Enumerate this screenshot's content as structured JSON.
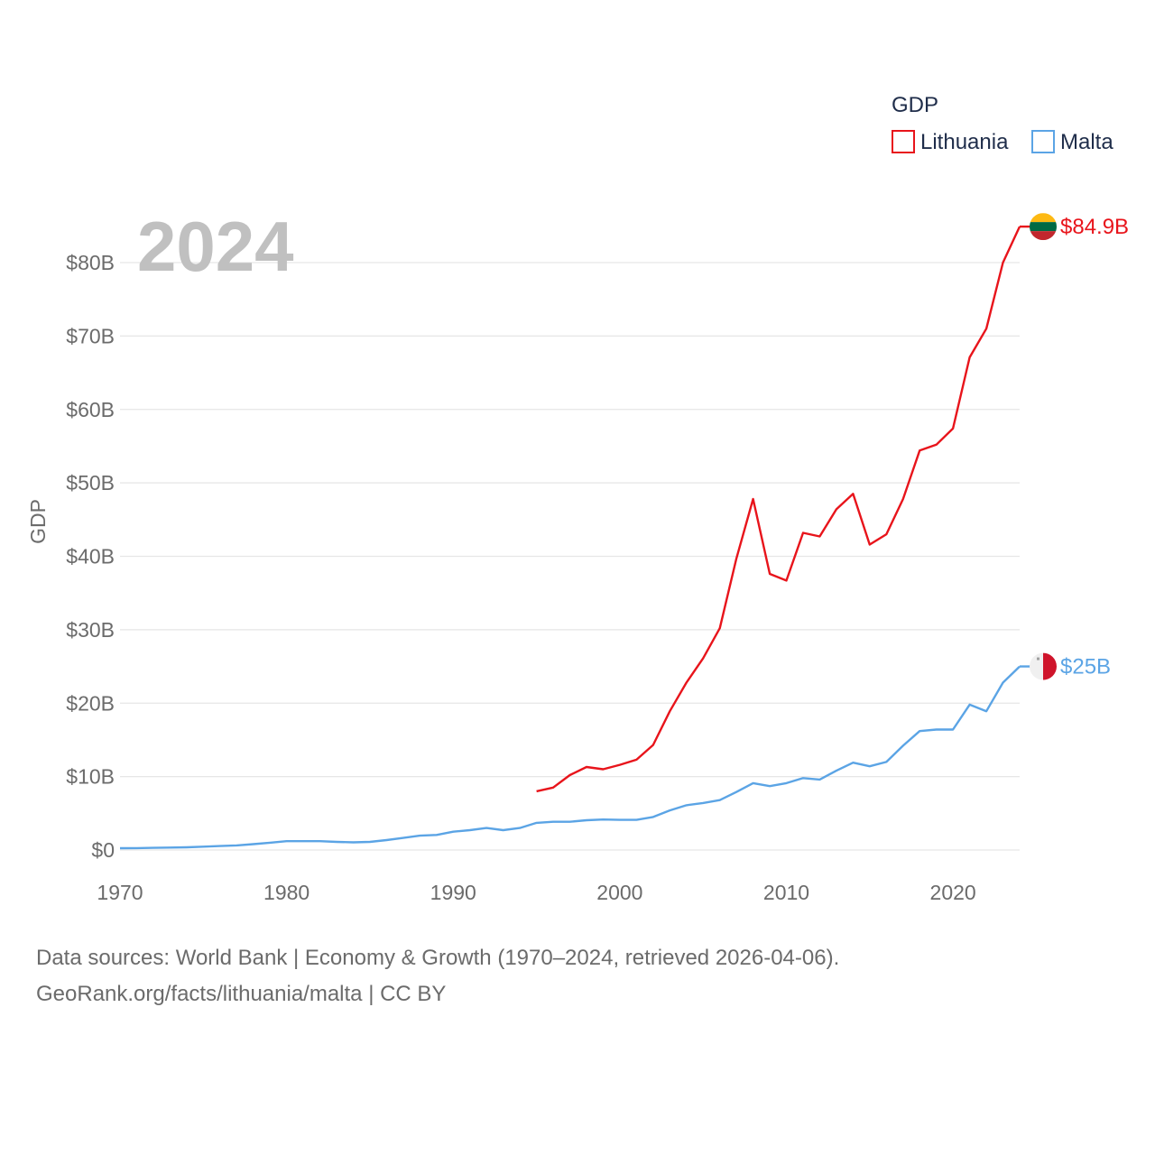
{
  "chart_data": {
    "type": "line",
    "title": "",
    "big_year": "2024",
    "ylabel": "GDP",
    "xlabel": "",
    "xlim": [
      1970,
      2024
    ],
    "ylim": [
      0,
      80
    ],
    "x_ticks": [
      1970,
      1980,
      1990,
      2000,
      2010,
      2020
    ],
    "y_ticks": [
      0,
      10,
      20,
      30,
      40,
      50,
      60,
      70,
      80
    ],
    "y_tick_labels": [
      "$0",
      "$10B",
      "$20B",
      "$30B",
      "$40B",
      "$50B",
      "$60B",
      "$70B",
      "$80B"
    ],
    "grid": true,
    "legend": {
      "title": "GDP",
      "position": "top-right",
      "entries": [
        "Lithuania",
        "Malta"
      ]
    },
    "series": [
      {
        "name": "Lithuania",
        "color": "#e8141b",
        "end_label": "$84.9B",
        "flag": "lithuania",
        "x": [
          1995,
          1996,
          1997,
          1998,
          1999,
          2000,
          2001,
          2002,
          2003,
          2004,
          2005,
          2006,
          2007,
          2008,
          2009,
          2010,
          2011,
          2012,
          2013,
          2014,
          2015,
          2016,
          2017,
          2018,
          2019,
          2020,
          2021,
          2022,
          2023,
          2024
        ],
        "values": [
          8.0,
          8.5,
          10.2,
          11.3,
          11.0,
          11.6,
          12.3,
          14.3,
          18.9,
          22.8,
          26.1,
          30.2,
          39.7,
          47.8,
          37.6,
          36.7,
          43.2,
          42.7,
          46.4,
          48.5,
          41.6,
          43.0,
          47.8,
          54.4,
          55.2,
          57.4,
          67.1,
          71.0,
          80.0,
          84.9
        ]
      },
      {
        "name": "Malta",
        "color": "#5ba4e5",
        "end_label": "$25B",
        "flag": "malta",
        "x": [
          1970,
          1971,
          1972,
          1973,
          1974,
          1975,
          1976,
          1977,
          1978,
          1979,
          1980,
          1981,
          1982,
          1983,
          1984,
          1985,
          1986,
          1987,
          1988,
          1989,
          1990,
          1991,
          1992,
          1993,
          1994,
          1995,
          1996,
          1997,
          1998,
          1999,
          2000,
          2001,
          2002,
          2003,
          2004,
          2005,
          2006,
          2007,
          2008,
          2009,
          2010,
          2011,
          2012,
          2013,
          2014,
          2015,
          2016,
          2017,
          2018,
          2019,
          2020,
          2021,
          2022,
          2023,
          2024
        ],
        "values": [
          0.25,
          0.26,
          0.29,
          0.33,
          0.37,
          0.46,
          0.54,
          0.63,
          0.8,
          1.0,
          1.2,
          1.2,
          1.2,
          1.1,
          1.05,
          1.1,
          1.35,
          1.65,
          1.95,
          2.05,
          2.5,
          2.7,
          3.0,
          2.7,
          3.0,
          3.7,
          3.85,
          3.85,
          4.05,
          4.15,
          4.1,
          4.1,
          4.5,
          5.4,
          6.1,
          6.4,
          6.8,
          7.9,
          9.1,
          8.7,
          9.1,
          9.8,
          9.6,
          10.8,
          11.9,
          11.4,
          12.0,
          14.2,
          16.2,
          16.4,
          16.4,
          19.8,
          18.9,
          22.8,
          25.0
        ]
      }
    ]
  },
  "source": {
    "line1": "Data sources: World Bank | Economy & Growth (1970–2024, retrieved 2026-04-06).",
    "line2": "GeoRank.org/facts/lithuania/malta | CC BY"
  }
}
